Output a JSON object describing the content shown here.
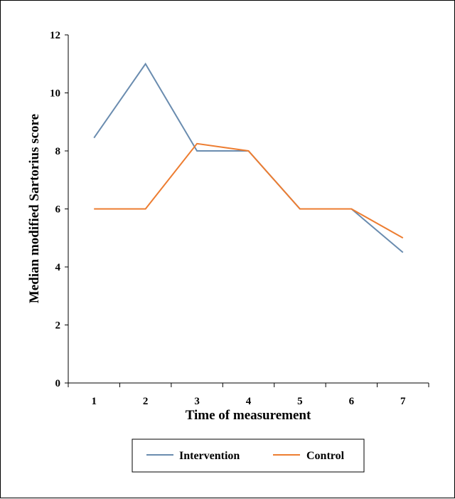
{
  "chart_data": {
    "type": "line",
    "categories": [
      "1",
      "2",
      "3",
      "4",
      "5",
      "6",
      "7"
    ],
    "series": [
      {
        "name": "Intervention",
        "color": "#6a8caf",
        "values": [
          8.45,
          11,
          8,
          8,
          6,
          6,
          4.5
        ]
      },
      {
        "name": "Control",
        "color": "#ed7d31",
        "values": [
          6,
          6,
          8.25,
          8,
          6,
          6,
          5
        ]
      }
    ],
    "xlabel": "Time of measurement",
    "ylabel": "Median modified Sartorius score",
    "ylim": [
      0,
      12
    ],
    "yticks": [
      "0",
      "2",
      "4",
      "6",
      "8",
      "10",
      "12"
    ],
    "grid": false,
    "legend_position": "bottom-center"
  }
}
